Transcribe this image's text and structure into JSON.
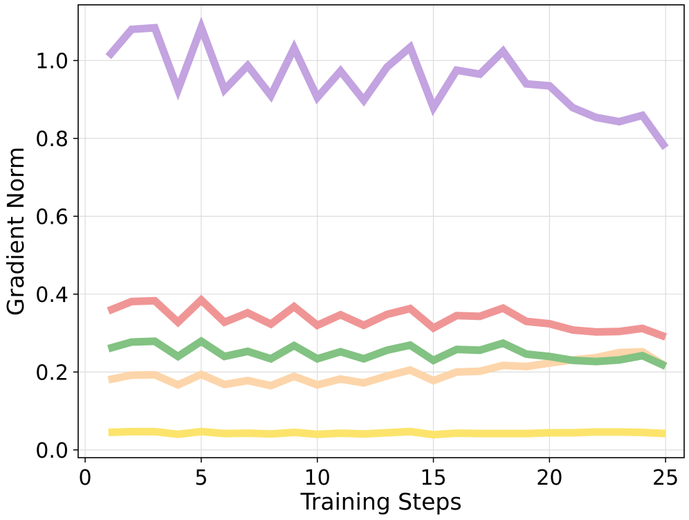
{
  "chart_data": {
    "type": "line",
    "title": "",
    "xlabel": "Training Steps",
    "ylabel": "Gradient Norm",
    "xlim": [
      -0.3,
      25.8
    ],
    "ylim": [
      -0.02,
      1.143
    ],
    "xticks": [
      0,
      5,
      10,
      15,
      20,
      25
    ],
    "xtick_labels": [
      "0",
      "5",
      "10",
      "15",
      "20",
      "25"
    ],
    "yticks": [
      0.0,
      0.2,
      0.4,
      0.6,
      0.8,
      1.0
    ],
    "ytick_labels": [
      "0.0",
      "0.2",
      "0.4",
      "0.6",
      "0.8",
      "1.0"
    ],
    "grid": true,
    "x": [
      1,
      2,
      3,
      4,
      5,
      6,
      7,
      8,
      9,
      10,
      11,
      12,
      13,
      14,
      15,
      16,
      17,
      18,
      19,
      20,
      21,
      22,
      23,
      24,
      25
    ],
    "series": [
      {
        "name": "purple",
        "color": "#c3a3e0",
        "values": [
          1.01,
          1.08,
          1.084,
          0.925,
          1.085,
          0.925,
          0.987,
          0.91,
          1.032,
          0.905,
          0.973,
          0.898,
          0.983,
          1.034,
          0.879,
          0.975,
          0.965,
          1.024,
          0.94,
          0.935,
          0.879,
          0.854,
          0.843,
          0.859,
          0.776
        ]
      },
      {
        "name": "red",
        "color": "#f09595",
        "values": [
          0.357,
          0.381,
          0.383,
          0.328,
          0.385,
          0.328,
          0.352,
          0.323,
          0.368,
          0.32,
          0.347,
          0.32,
          0.348,
          0.363,
          0.313,
          0.345,
          0.343,
          0.364,
          0.33,
          0.324,
          0.308,
          0.303,
          0.304,
          0.312,
          0.29
        ]
      },
      {
        "name": "orange",
        "color": "#fdd5aa",
        "values": [
          0.18,
          0.192,
          0.193,
          0.167,
          0.194,
          0.168,
          0.178,
          0.165,
          0.189,
          0.167,
          0.182,
          0.172,
          0.19,
          0.205,
          0.178,
          0.2,
          0.202,
          0.217,
          0.214,
          0.223,
          0.231,
          0.237,
          0.25,
          0.252,
          0.215
        ]
      },
      {
        "name": "green",
        "color": "#82c282",
        "values": [
          0.26,
          0.277,
          0.279,
          0.24,
          0.279,
          0.24,
          0.253,
          0.234,
          0.268,
          0.234,
          0.252,
          0.234,
          0.256,
          0.269,
          0.23,
          0.258,
          0.256,
          0.274,
          0.246,
          0.24,
          0.23,
          0.227,
          0.231,
          0.242,
          0.215
        ]
      },
      {
        "name": "yellow",
        "color": "#fce46c",
        "values": [
          0.045,
          0.047,
          0.047,
          0.04,
          0.047,
          0.042,
          0.043,
          0.041,
          0.045,
          0.04,
          0.043,
          0.041,
          0.044,
          0.047,
          0.039,
          0.043,
          0.042,
          0.042,
          0.042,
          0.044,
          0.044,
          0.046,
          0.046,
          0.045,
          0.042
        ]
      }
    ]
  }
}
